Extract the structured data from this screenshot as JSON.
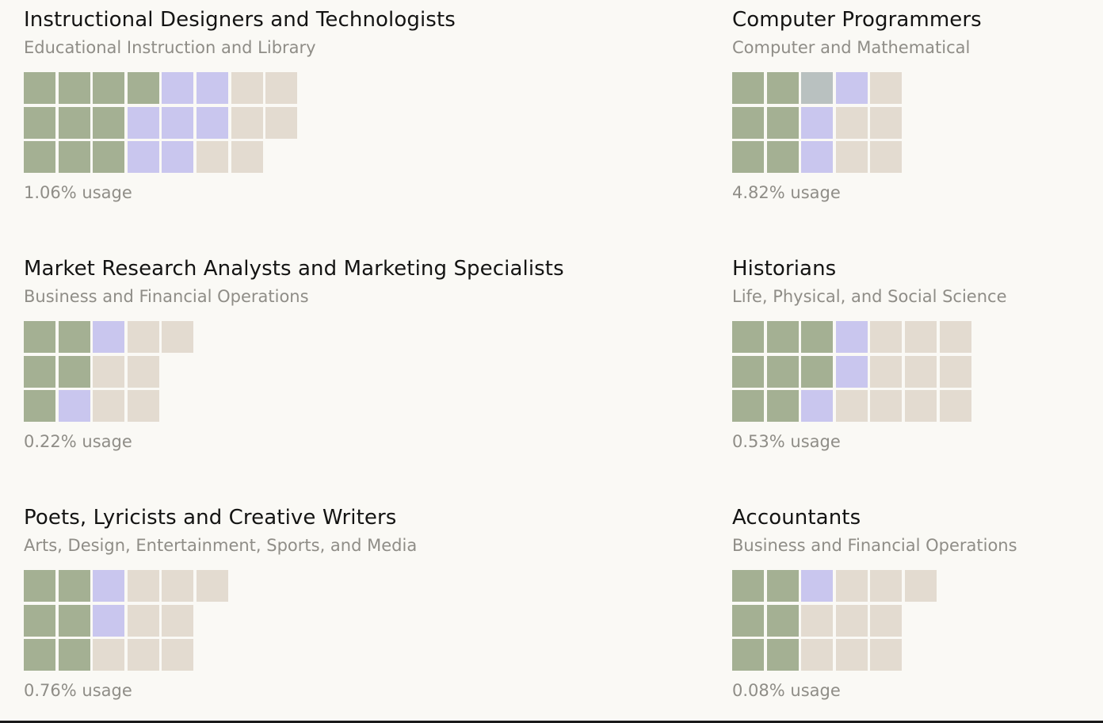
{
  "legend_colors": {
    "green": "#a4b093",
    "purple": "#c9c6ee",
    "beige": "#e3dbd0",
    "gray": "#b9c1c0"
  },
  "chart_data": {
    "type": "waffle",
    "cards": [
      {
        "title": "Instructional Designers and Technologists",
        "category": "Educational Instruction and Library",
        "usage": "1.06% usage",
        "rows": [
          [
            "green",
            "green",
            "green",
            "green",
            "purple",
            "purple",
            "beige",
            "beige"
          ],
          [
            "green",
            "green",
            "green",
            "purple",
            "purple",
            "purple",
            "beige",
            "beige"
          ],
          [
            "green",
            "green",
            "green",
            "purple",
            "purple",
            "beige",
            "beige"
          ]
        ]
      },
      {
        "title": "Computer Programmers",
        "category": "Computer and Mathematical",
        "usage": "4.82% usage",
        "rows": [
          [
            "green",
            "green",
            "gray",
            "purple",
            "beige"
          ],
          [
            "green",
            "green",
            "purple",
            "beige",
            "beige"
          ],
          [
            "green",
            "green",
            "purple",
            "beige",
            "beige"
          ]
        ]
      },
      {
        "title": "Market Research Analysts and Marketing Specialists",
        "category": "Business and Financial Operations",
        "usage": "0.22% usage",
        "rows": [
          [
            "green",
            "green",
            "purple",
            "beige",
            "beige"
          ],
          [
            "green",
            "green",
            "beige",
            "beige"
          ],
          [
            "green",
            "purple",
            "beige",
            "beige"
          ]
        ]
      },
      {
        "title": "Historians",
        "category": "Life, Physical, and Social Science",
        "usage": "0.53% usage",
        "rows": [
          [
            "green",
            "green",
            "green",
            "purple",
            "beige",
            "beige",
            "beige"
          ],
          [
            "green",
            "green",
            "green",
            "purple",
            "beige",
            "beige",
            "beige"
          ],
          [
            "green",
            "green",
            "purple",
            "beige",
            "beige",
            "beige",
            "beige"
          ]
        ]
      },
      {
        "title": "Poets, Lyricists and Creative Writers",
        "category": "Arts, Design, Entertainment, Sports, and Media",
        "usage": "0.76% usage",
        "rows": [
          [
            "green",
            "green",
            "purple",
            "beige",
            "beige",
            "beige"
          ],
          [
            "green",
            "green",
            "purple",
            "beige",
            "beige"
          ],
          [
            "green",
            "green",
            "beige",
            "beige",
            "beige"
          ]
        ]
      },
      {
        "title": "Accountants",
        "category": "Business and Financial Operations",
        "usage": "0.08% usage",
        "rows": [
          [
            "green",
            "green",
            "purple",
            "beige",
            "beige",
            "beige"
          ],
          [
            "green",
            "green",
            "beige",
            "beige",
            "beige"
          ],
          [
            "green",
            "green",
            "beige",
            "beige",
            "beige"
          ]
        ]
      }
    ]
  }
}
